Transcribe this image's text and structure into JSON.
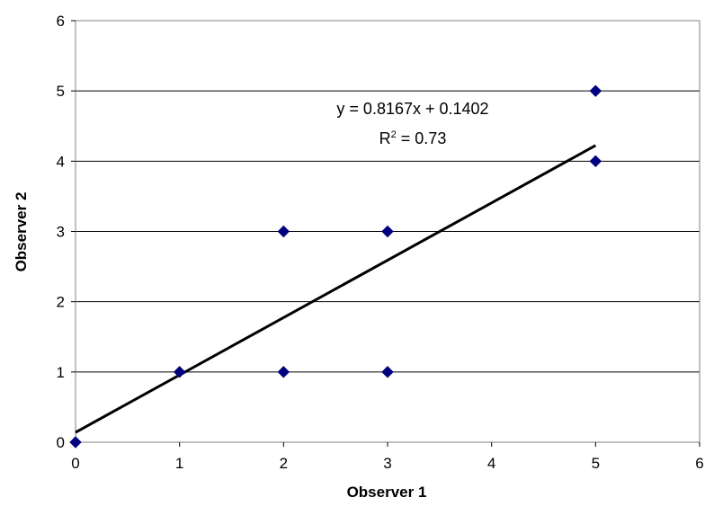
{
  "chart_data": {
    "type": "scatter",
    "title": "",
    "xlabel": "Observer 1",
    "ylabel": "Observer 2",
    "xlim": [
      0,
      6
    ],
    "ylim": [
      0,
      6
    ],
    "xticks": [
      "0",
      "1",
      "2",
      "3",
      "4",
      "5",
      "6"
    ],
    "yticks": [
      "0",
      "1",
      "2",
      "3",
      "4",
      "5",
      "6"
    ],
    "grid": "horizontal",
    "legend": "none",
    "series": [
      {
        "points": [
          {
            "x": 0,
            "y": 0
          },
          {
            "x": 1,
            "y": 1
          },
          {
            "x": 2,
            "y": 1
          },
          {
            "x": 2,
            "y": 3
          },
          {
            "x": 3,
            "y": 1
          },
          {
            "x": 3,
            "y": 3
          },
          {
            "x": 5,
            "y": 4
          },
          {
            "x": 5,
            "y": 5
          }
        ],
        "color": "#000080",
        "marker": "diamond"
      }
    ],
    "trendline": {
      "slope": 0.8167,
      "intercept": 0.1402,
      "x_range": [
        0,
        5
      ],
      "color": "#000000"
    },
    "annotations": {
      "equation": "y = 0.8167x + 0.1402",
      "r2_prefix": "R",
      "r2_sup": "2",
      "r2_suffix": " = 0.73"
    }
  }
}
